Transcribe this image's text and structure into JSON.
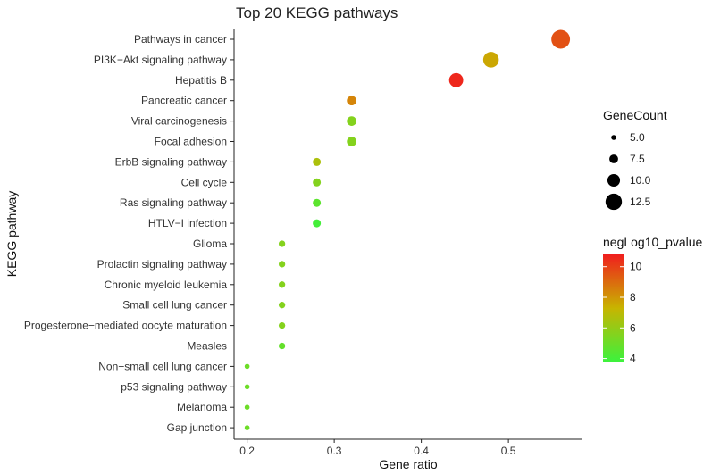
{
  "chart_data": {
    "type": "scatter",
    "title": "Top 20 KEGG pathways",
    "xlabel": "Gene ratio",
    "ylabel": "KEGG pathway",
    "xlim": [
      0.185,
      0.585
    ],
    "x_ticks": [
      0.2,
      0.3,
      0.4,
      0.5
    ],
    "x_tick_labels": [
      "0.2",
      "0.3",
      "0.4",
      "0.5"
    ],
    "grid": false,
    "points": [
      {
        "pathway": "Pathways in cancer",
        "gene_ratio": 0.56,
        "gene_count": 14,
        "neg_log10_pvalue": 9.6
      },
      {
        "pathway": "PI3K−Akt signaling pathway",
        "gene_ratio": 0.48,
        "gene_count": 12,
        "neg_log10_pvalue": 7.6
      },
      {
        "pathway": "Hepatitis B",
        "gene_ratio": 0.44,
        "gene_count": 11,
        "neg_log10_pvalue": 10.6
      },
      {
        "pathway": "Pancreatic cancer",
        "gene_ratio": 0.32,
        "gene_count": 8,
        "neg_log10_pvalue": 8.4
      },
      {
        "pathway": "Viral carcinogenesis",
        "gene_ratio": 0.32,
        "gene_count": 8,
        "neg_log10_pvalue": 5.6
      },
      {
        "pathway": "Focal adhesion",
        "gene_ratio": 0.32,
        "gene_count": 8,
        "neg_log10_pvalue": 5.6
      },
      {
        "pathway": "ErbB signaling pathway",
        "gene_ratio": 0.28,
        "gene_count": 7,
        "neg_log10_pvalue": 6.6
      },
      {
        "pathway": "Cell cycle",
        "gene_ratio": 0.28,
        "gene_count": 7,
        "neg_log10_pvalue": 5.6
      },
      {
        "pathway": "Ras signaling pathway",
        "gene_ratio": 0.28,
        "gene_count": 7,
        "neg_log10_pvalue": 4.6
      },
      {
        "pathway": "HTLV−I infection",
        "gene_ratio": 0.28,
        "gene_count": 7,
        "neg_log10_pvalue": 4.0
      },
      {
        "pathway": "Glioma",
        "gene_ratio": 0.24,
        "gene_count": 6,
        "neg_log10_pvalue": 5.6
      },
      {
        "pathway": "Prolactin signaling pathway",
        "gene_ratio": 0.24,
        "gene_count": 6,
        "neg_log10_pvalue": 5.6
      },
      {
        "pathway": "Chronic myeloid leukemia",
        "gene_ratio": 0.24,
        "gene_count": 6,
        "neg_log10_pvalue": 5.6
      },
      {
        "pathway": "Small cell lung cancer",
        "gene_ratio": 0.24,
        "gene_count": 6,
        "neg_log10_pvalue": 5.6
      },
      {
        "pathway": "Progesterone−mediated oocyte maturation",
        "gene_ratio": 0.24,
        "gene_count": 6,
        "neg_log10_pvalue": 5.6
      },
      {
        "pathway": "Measles",
        "gene_ratio": 0.24,
        "gene_count": 6,
        "neg_log10_pvalue": 4.8
      },
      {
        "pathway": "Non−small cell lung cancer",
        "gene_ratio": 0.2,
        "gene_count": 5,
        "neg_log10_pvalue": 5.0
      },
      {
        "pathway": "p53 signaling pathway",
        "gene_ratio": 0.2,
        "gene_count": 5,
        "neg_log10_pvalue": 5.0
      },
      {
        "pathway": "Melanoma",
        "gene_ratio": 0.2,
        "gene_count": 5,
        "neg_log10_pvalue": 5.0
      },
      {
        "pathway": "Gap junction",
        "gene_ratio": 0.2,
        "gene_count": 5,
        "neg_log10_pvalue": 5.0
      }
    ],
    "size_legend": {
      "title": "GeneCount",
      "values": [
        5.0,
        7.5,
        10.0,
        12.5
      ],
      "labels": [
        "5.0",
        "7.5",
        "10.0",
        "12.5"
      ]
    },
    "color_legend": {
      "title": "negLog10_pvalue",
      "range": [
        3.8,
        10.8
      ],
      "ticks": [
        4,
        6,
        8,
        10
      ],
      "tick_labels": [
        "4",
        "6",
        "8",
        "10"
      ],
      "low_color": "#3cf23c",
      "mid_color": "#c8b400",
      "high_color": "#f01e1e"
    },
    "legend_position": "right"
  }
}
